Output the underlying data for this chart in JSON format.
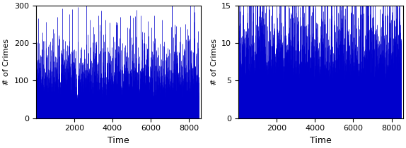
{
  "left_plot": {
    "xlim": [
      0,
      8600
    ],
    "ylim": [
      0,
      300
    ],
    "yticks": [
      0,
      100,
      200,
      300
    ],
    "xticks": [
      2000,
      4000,
      6000,
      8000
    ],
    "xlabel": "Time",
    "ylabel": "# of Crimes",
    "bar_color": "#0000cc",
    "n_points": 8500,
    "base_scale": 45,
    "spike_prob": 0.008,
    "spike_add": 70,
    "seed": 1
  },
  "right_plot": {
    "xlim": [
      0,
      8600
    ],
    "ylim": [
      0,
      15
    ],
    "yticks": [
      0,
      5,
      10,
      15
    ],
    "xticks": [
      2000,
      4000,
      6000,
      8000
    ],
    "xlabel": "Time",
    "ylabel": "# of Crimes",
    "bar_color": "#0000cc",
    "n_points": 8500,
    "base_scale": 3.5,
    "spike_prob": 0.015,
    "spike_add": 5,
    "seed": 2
  }
}
